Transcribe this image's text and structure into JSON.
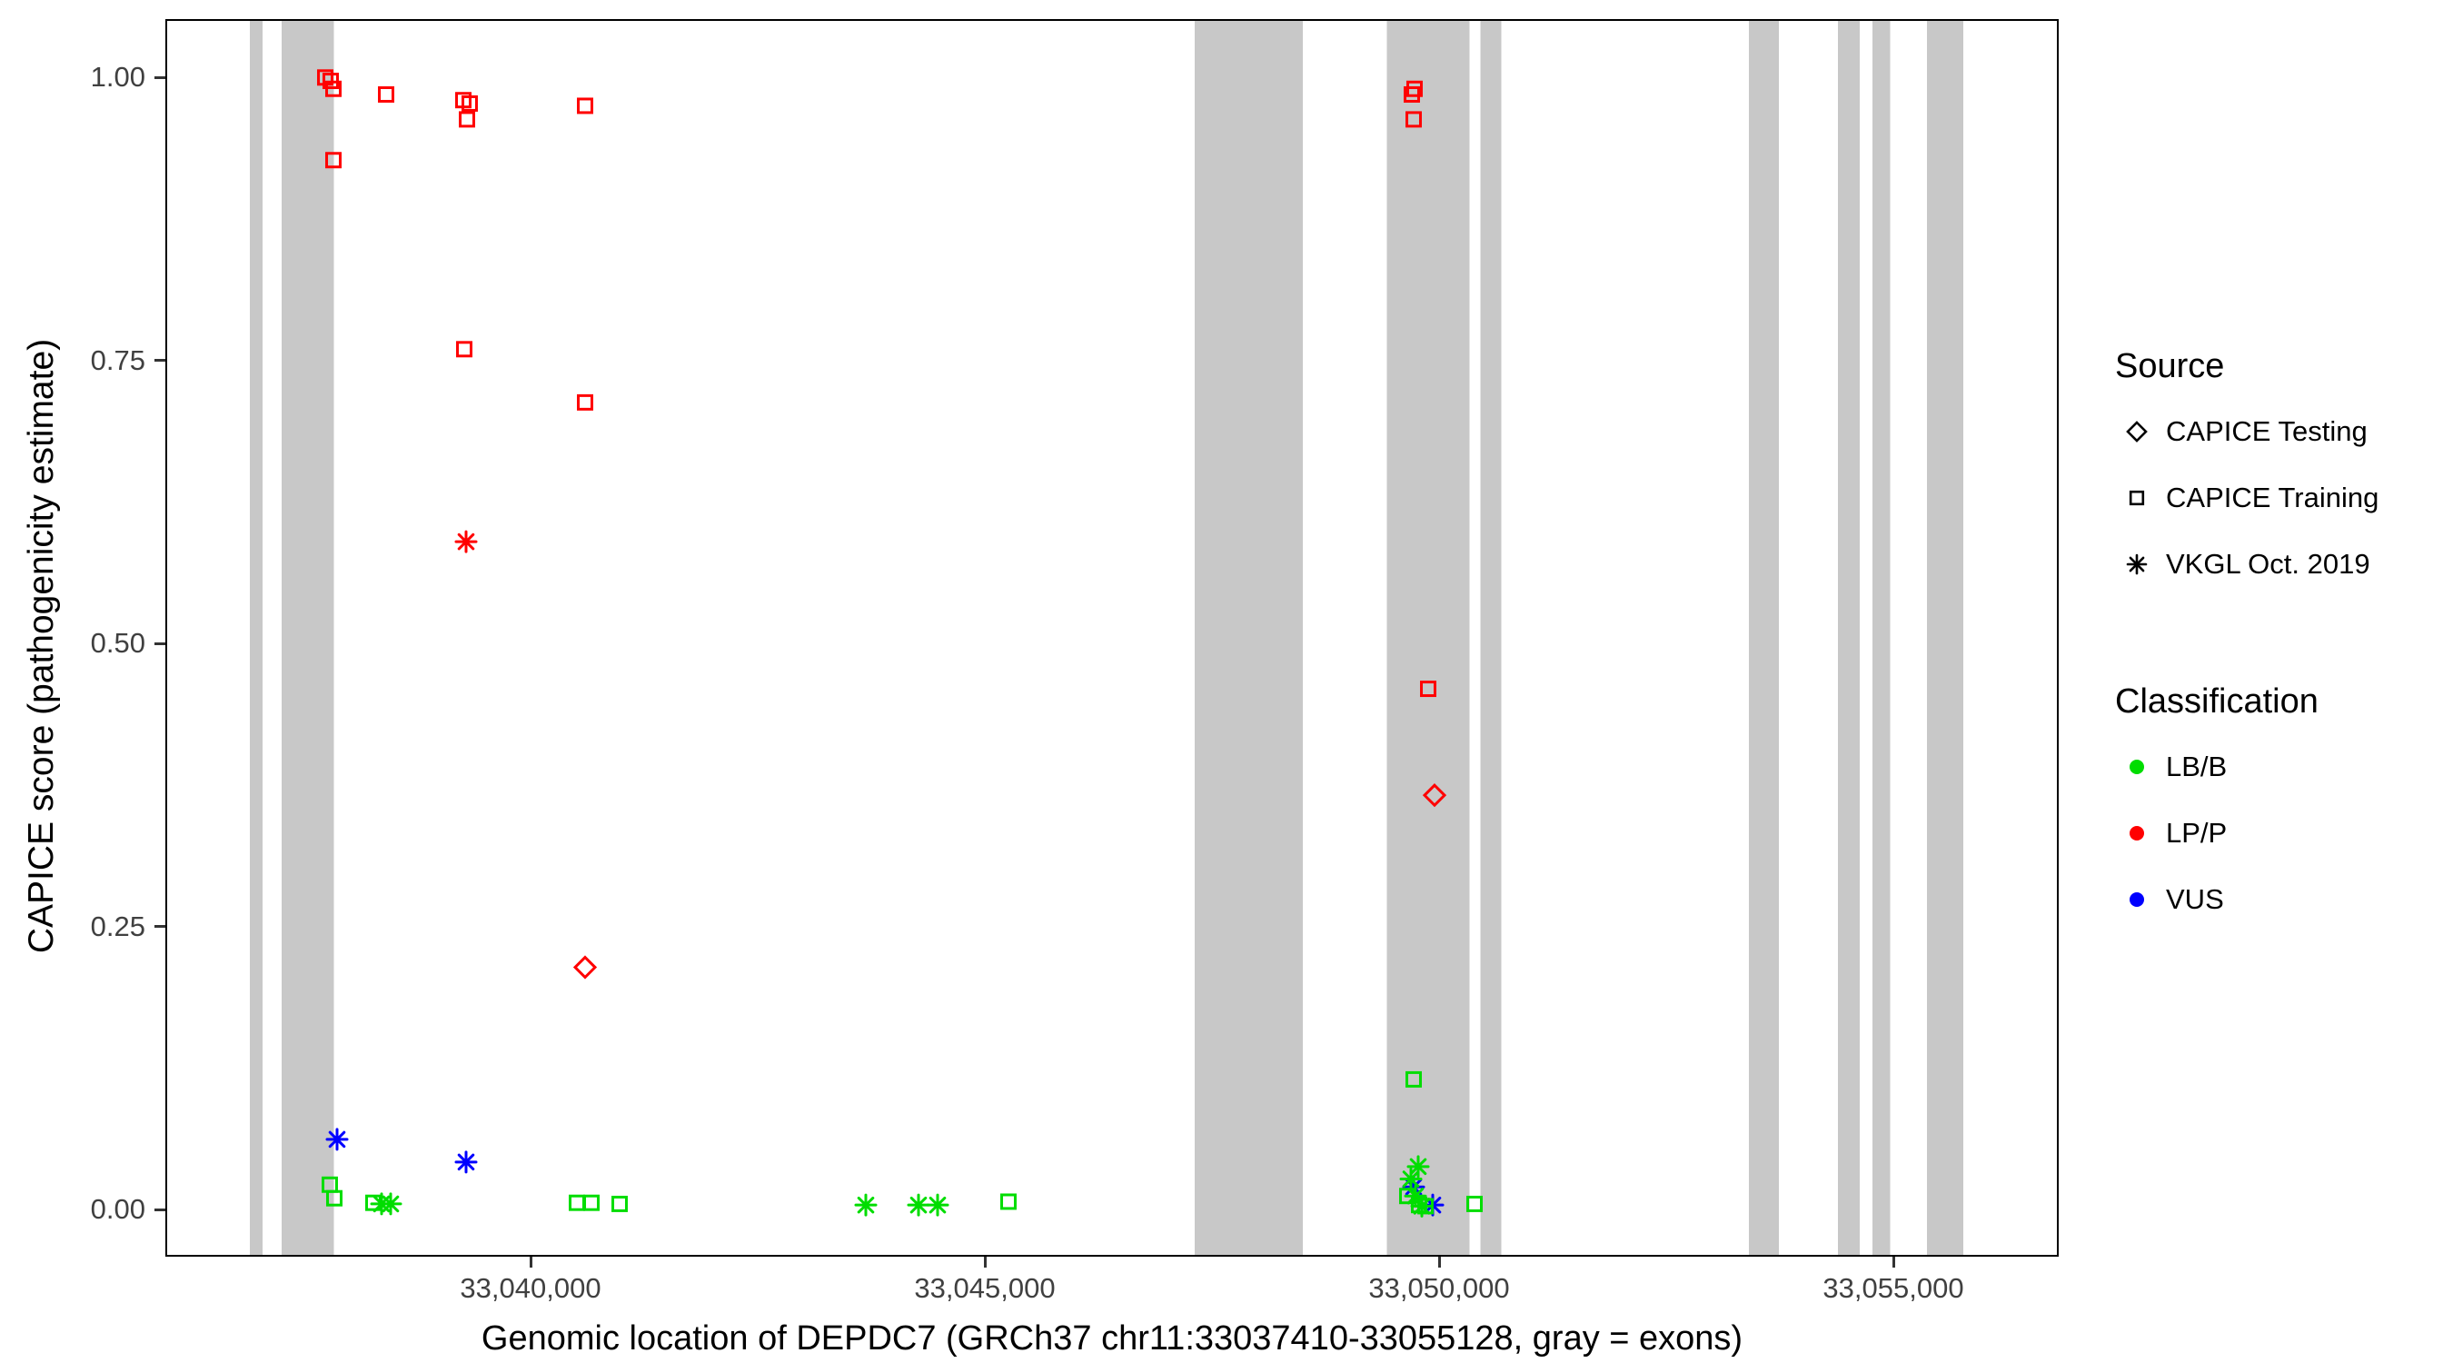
{
  "legend": {
    "position": "right",
    "source": {
      "title": "Source",
      "items": [
        {
          "label": "CAPICE Testing",
          "shape": "diamond"
        },
        {
          "label": "CAPICE Training",
          "shape": "square"
        },
        {
          "label": "VKGL Oct. 2019",
          "shape": "asterisk"
        }
      ]
    },
    "classification": {
      "title": "Classification",
      "items": [
        {
          "label": "LB/B",
          "color": "#00DD00"
        },
        {
          "label": "LP/P",
          "color": "#FF0000"
        },
        {
          "label": "VUS",
          "color": "#0000FF"
        }
      ]
    }
  },
  "chart_data": {
    "type": "scatter",
    "title": "",
    "xlabel": "Genomic location of DEPDC7 (GRCh37 chr11:33037410-33055128, gray = exons)",
    "ylabel": "CAPICE score (pathogenicity estimate)",
    "grid": false,
    "legend_position": "right",
    "x_range": [
      33036000,
      33056800
    ],
    "y_range": [
      -0.04,
      1.05
    ],
    "x_ticks": [
      33040000,
      33045000,
      33050000,
      33055000
    ],
    "x_tick_labels": [
      "33,040,000",
      "33,045,000",
      "33,050,000",
      "33,055,000"
    ],
    "y_ticks": [
      0,
      0.25,
      0.5,
      0.75,
      1
    ],
    "y_tick_labels": [
      "0.00",
      "0.25",
      "0.50",
      "0.75",
      "1.00"
    ],
    "exon_color": "#C8C8C8",
    "class_colors": {
      "LB/B": "#00DD00",
      "LP/P": "#FF0000",
      "VUS": "#0000FF"
    },
    "shape_sources": {
      "diamond": "CAPICE Testing",
      "square": "CAPICE Training",
      "asterisk": "VKGL Oct. 2019"
    },
    "exons": [
      [
        33036910,
        33037050
      ],
      [
        33037260,
        33037835
      ],
      [
        33047310,
        33048500
      ],
      [
        33049425,
        33050335
      ],
      [
        33050455,
        33050685
      ],
      [
        33053410,
        33053740
      ],
      [
        33054390,
        33054630
      ],
      [
        33054770,
        33054965
      ],
      [
        33055370,
        33055770
      ]
    ],
    "points": [
      {
        "pos": 33037740,
        "score": 1.0,
        "shape": "square",
        "cls": "LP/P"
      },
      {
        "pos": 33037800,
        "score": 0.997,
        "shape": "square",
        "cls": "LP/P"
      },
      {
        "pos": 33037830,
        "score": 0.99,
        "shape": "square",
        "cls": "LP/P"
      },
      {
        "pos": 33037830,
        "score": 0.927,
        "shape": "square",
        "cls": "LP/P"
      },
      {
        "pos": 33038410,
        "score": 0.985,
        "shape": "square",
        "cls": "LP/P"
      },
      {
        "pos": 33039260,
        "score": 0.98,
        "shape": "square",
        "cls": "LP/P"
      },
      {
        "pos": 33039330,
        "score": 0.977,
        "shape": "square",
        "cls": "LP/P"
      },
      {
        "pos": 33039300,
        "score": 0.963,
        "shape": "square",
        "cls": "LP/P"
      },
      {
        "pos": 33040600,
        "score": 0.975,
        "shape": "square",
        "cls": "LP/P"
      },
      {
        "pos": 33039270,
        "score": 0.76,
        "shape": "square",
        "cls": "LP/P"
      },
      {
        "pos": 33040600,
        "score": 0.713,
        "shape": "square",
        "cls": "LP/P"
      },
      {
        "pos": 33049700,
        "score": 0.985,
        "shape": "square",
        "cls": "LP/P"
      },
      {
        "pos": 33049730,
        "score": 0.99,
        "shape": "square",
        "cls": "LP/P"
      },
      {
        "pos": 33049720,
        "score": 0.963,
        "shape": "square",
        "cls": "LP/P"
      },
      {
        "pos": 33049880,
        "score": 0.46,
        "shape": "square",
        "cls": "LP/P"
      },
      {
        "pos": 33049950,
        "score": 0.366,
        "shape": "diamond",
        "cls": "LP/P"
      },
      {
        "pos": 33040600,
        "score": 0.214,
        "shape": "diamond",
        "cls": "LP/P"
      },
      {
        "pos": 33039290,
        "score": 0.59,
        "shape": "asterisk",
        "cls": "LP/P"
      },
      {
        "pos": 33037870,
        "score": 0.062,
        "shape": "asterisk",
        "cls": "VUS"
      },
      {
        "pos": 33039290,
        "score": 0.042,
        "shape": "asterisk",
        "cls": "VUS"
      },
      {
        "pos": 33049720,
        "score": 0.02,
        "shape": "asterisk",
        "cls": "VUS"
      },
      {
        "pos": 33049930,
        "score": 0.004,
        "shape": "asterisk",
        "cls": "VUS"
      },
      {
        "pos": 33037790,
        "score": 0.022,
        "shape": "square",
        "cls": "LB/B"
      },
      {
        "pos": 33037840,
        "score": 0.01,
        "shape": "square",
        "cls": "LB/B"
      },
      {
        "pos": 33038270,
        "score": 0.006,
        "shape": "square",
        "cls": "LB/B"
      },
      {
        "pos": 33040510,
        "score": 0.006,
        "shape": "square",
        "cls": "LB/B"
      },
      {
        "pos": 33040670,
        "score": 0.006,
        "shape": "square",
        "cls": "LB/B"
      },
      {
        "pos": 33040980,
        "score": 0.005,
        "shape": "square",
        "cls": "LB/B"
      },
      {
        "pos": 33045260,
        "score": 0.007,
        "shape": "square",
        "cls": "LB/B"
      },
      {
        "pos": 33049720,
        "score": 0.115,
        "shape": "square",
        "cls": "LB/B"
      },
      {
        "pos": 33049650,
        "score": 0.012,
        "shape": "square",
        "cls": "LB/B"
      },
      {
        "pos": 33049780,
        "score": 0.004,
        "shape": "square",
        "cls": "LB/B"
      },
      {
        "pos": 33049850,
        "score": 0.003,
        "shape": "square",
        "cls": "LB/B"
      },
      {
        "pos": 33050390,
        "score": 0.005,
        "shape": "square",
        "cls": "LB/B"
      },
      {
        "pos": 33038360,
        "score": 0.005,
        "shape": "asterisk",
        "cls": "LB/B"
      },
      {
        "pos": 33038460,
        "score": 0.005,
        "shape": "asterisk",
        "cls": "LB/B"
      },
      {
        "pos": 33043690,
        "score": 0.004,
        "shape": "asterisk",
        "cls": "LB/B"
      },
      {
        "pos": 33044270,
        "score": 0.004,
        "shape": "asterisk",
        "cls": "LB/B"
      },
      {
        "pos": 33044480,
        "score": 0.004,
        "shape": "asterisk",
        "cls": "LB/B"
      },
      {
        "pos": 33049770,
        "score": 0.038,
        "shape": "asterisk",
        "cls": "LB/B"
      },
      {
        "pos": 33049690,
        "score": 0.027,
        "shape": "asterisk",
        "cls": "LB/B"
      },
      {
        "pos": 33049740,
        "score": 0.012,
        "shape": "asterisk",
        "cls": "LB/B"
      },
      {
        "pos": 33049810,
        "score": 0.003,
        "shape": "asterisk",
        "cls": "LB/B"
      }
    ]
  }
}
